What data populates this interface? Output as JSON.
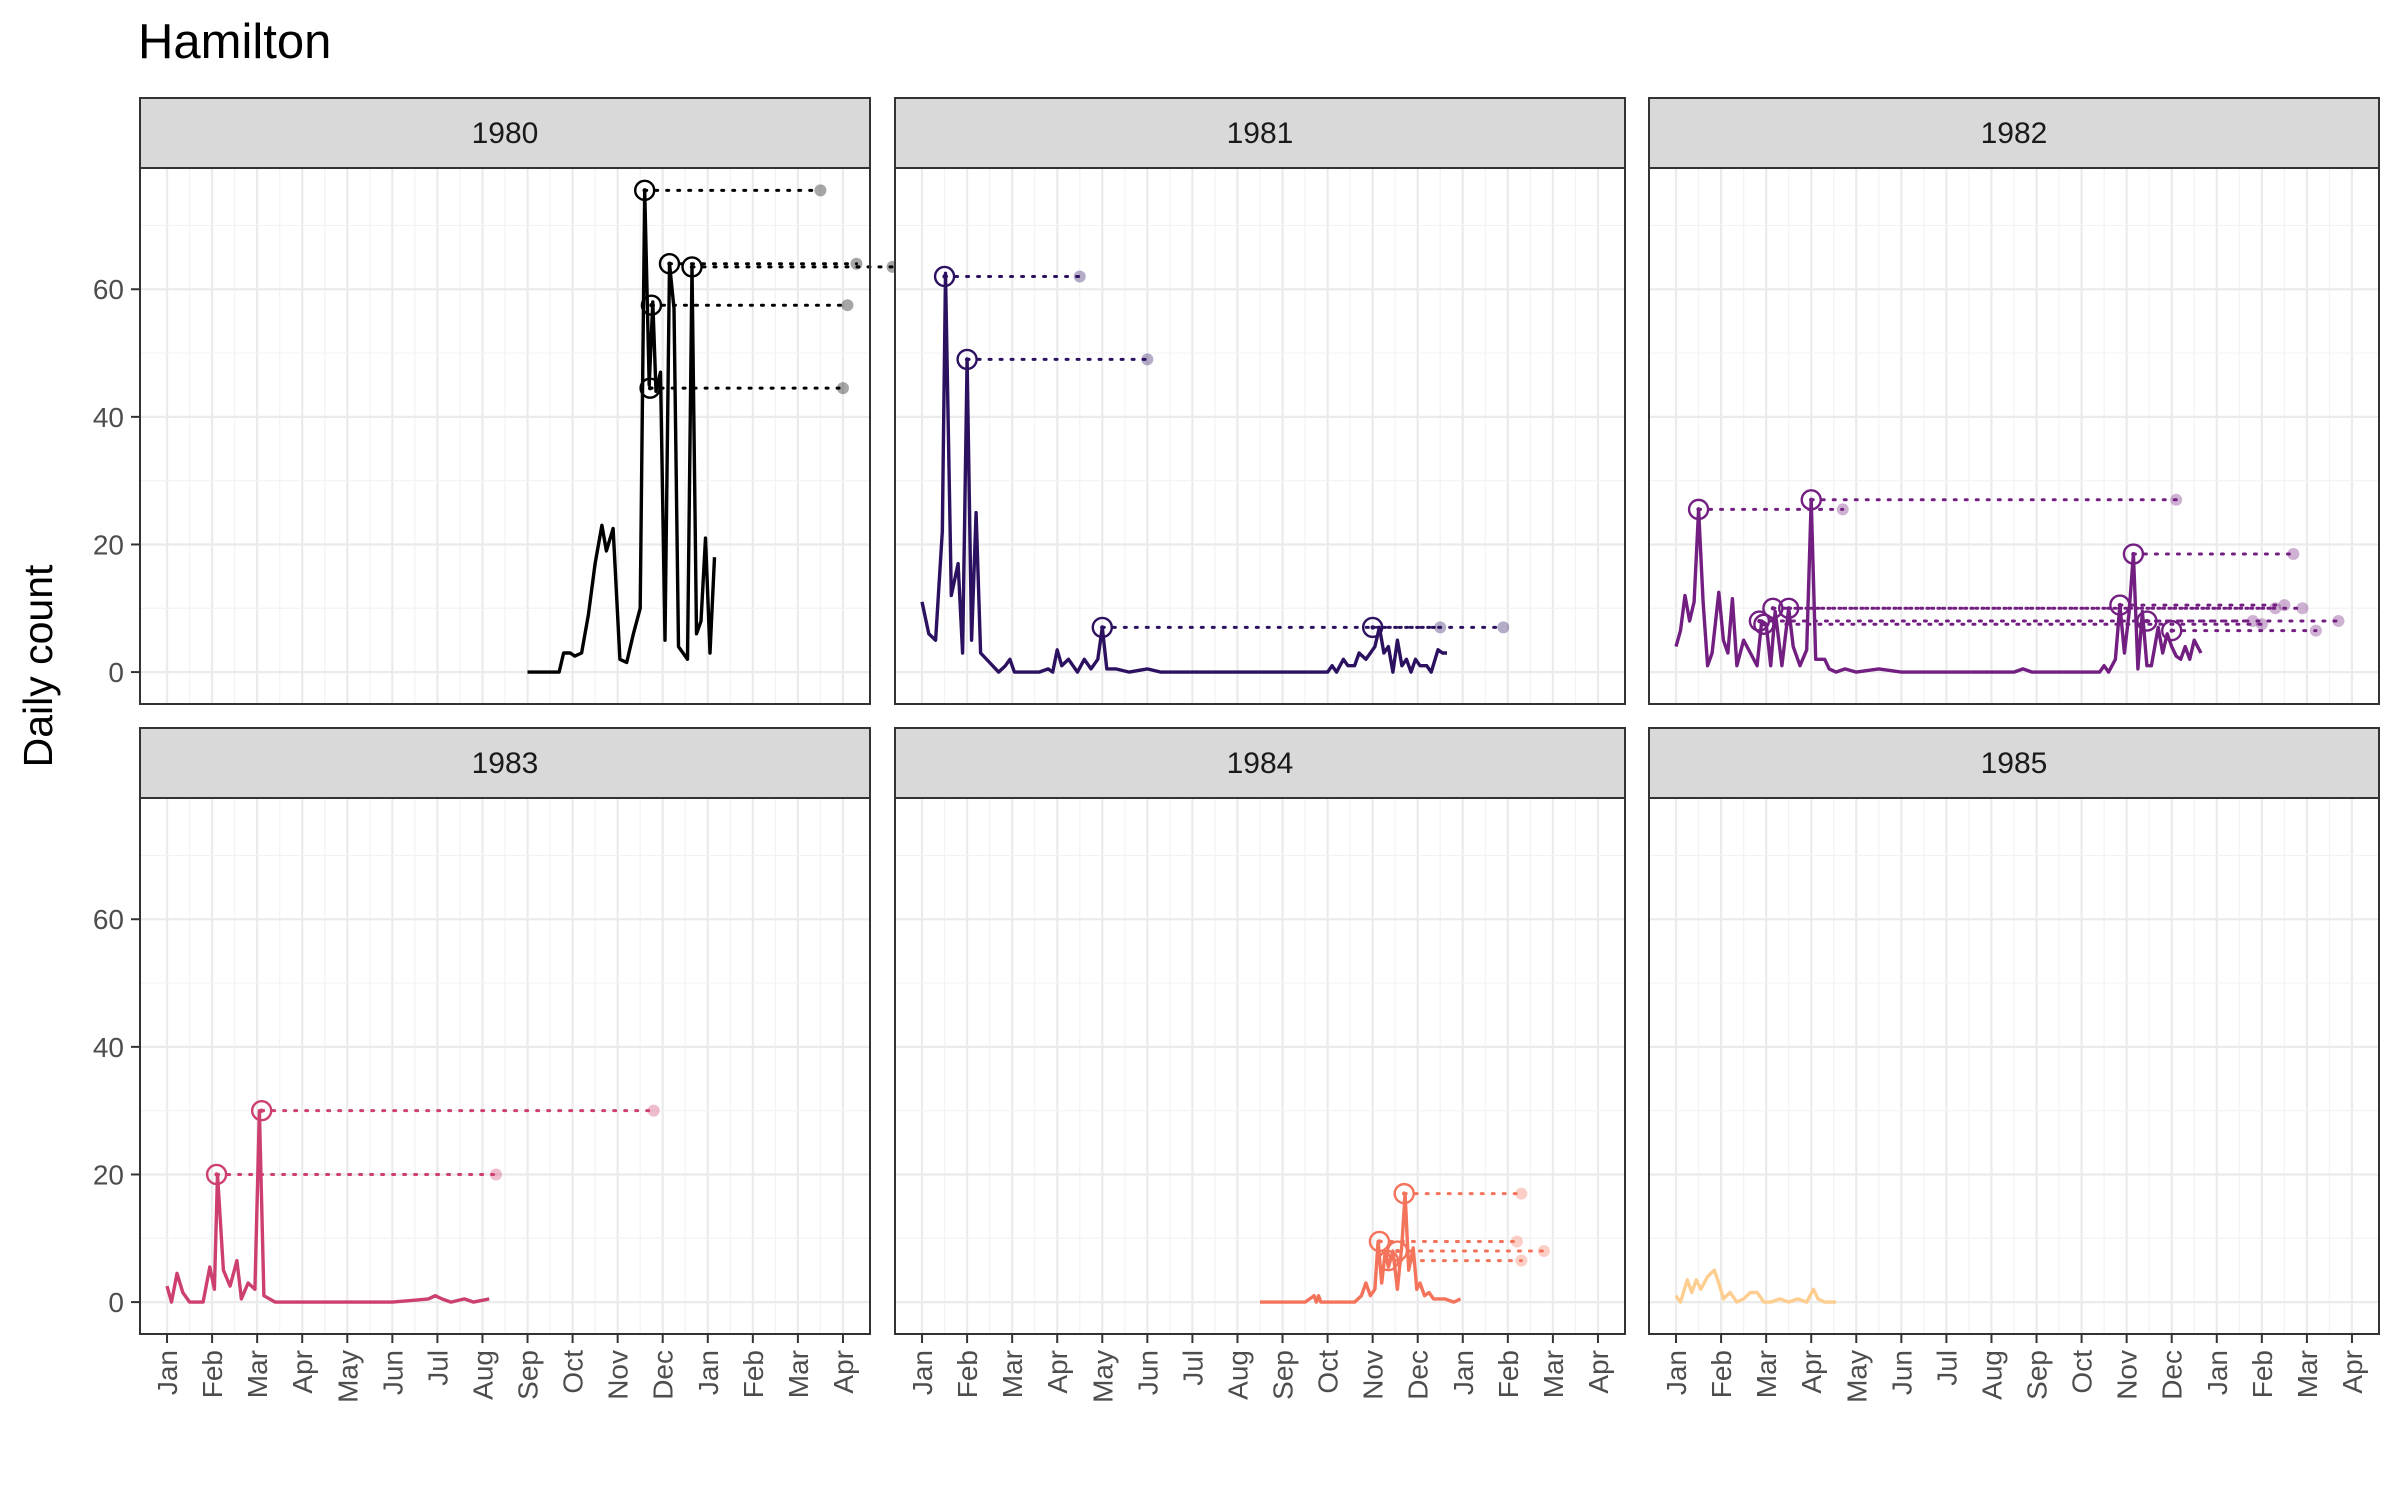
{
  "chart_data": {
    "type": "line",
    "title": "Hamilton",
    "ylabel": "Daily count",
    "xlabel": "",
    "ylim": [
      -5,
      79
    ],
    "yticks": [
      0,
      20,
      40,
      60
    ],
    "xlim_months": [
      -0.6,
      15.6
    ],
    "xtick_labels": [
      "Jan",
      "Feb",
      "Mar",
      "Apr",
      "May",
      "Jun",
      "Jul",
      "Aug",
      "Sep",
      "Oct",
      "Nov",
      "Dec",
      "Jan",
      "Feb",
      "Mar",
      "Apr"
    ],
    "grid": true,
    "facets": [
      {
        "label": "1980",
        "color": "#000000",
        "series": [
          [
            8.0,
            0
          ],
          [
            8.4,
            0
          ],
          [
            8.7,
            0
          ],
          [
            8.8,
            3
          ],
          [
            8.95,
            3
          ],
          [
            9.05,
            2.5
          ],
          [
            9.2,
            3
          ],
          [
            9.35,
            9
          ],
          [
            9.5,
            17
          ],
          [
            9.65,
            23
          ],
          [
            9.75,
            19
          ],
          [
            9.9,
            22.5
          ],
          [
            10.05,
            2
          ],
          [
            10.2,
            1.5
          ],
          [
            10.35,
            6
          ],
          [
            10.5,
            10
          ],
          [
            10.6,
            75.5
          ],
          [
            10.7,
            45
          ],
          [
            10.78,
            58
          ],
          [
            10.85,
            44
          ],
          [
            10.95,
            47
          ],
          [
            11.05,
            5
          ],
          [
            11.15,
            64
          ],
          [
            11.25,
            57
          ],
          [
            11.35,
            4
          ],
          [
            11.45,
            3
          ],
          [
            11.55,
            2
          ],
          [
            11.65,
            63.5
          ],
          [
            11.75,
            6
          ],
          [
            11.85,
            8
          ],
          [
            11.95,
            21
          ],
          [
            12.05,
            3
          ],
          [
            12.15,
            18
          ]
        ],
        "peaks": [
          [
            10.6,
            75.5,
            14.5
          ],
          [
            10.75,
            57.5,
            15.1
          ],
          [
            10.72,
            44.5,
            15.0
          ],
          [
            11.15,
            64,
            15.3
          ],
          [
            11.65,
            63.5,
            16.1
          ]
        ]
      },
      {
        "label": "1981",
        "color": "#2C1160",
        "series": [
          [
            0.0,
            11
          ],
          [
            0.15,
            6
          ],
          [
            0.3,
            5
          ],
          [
            0.45,
            22
          ],
          [
            0.52,
            62.5
          ],
          [
            0.65,
            12
          ],
          [
            0.8,
            17
          ],
          [
            0.9,
            3
          ],
          [
            1.0,
            49
          ],
          [
            1.1,
            5
          ],
          [
            1.2,
            25
          ],
          [
            1.3,
            3
          ],
          [
            1.5,
            1.5
          ],
          [
            1.7,
            0
          ],
          [
            1.85,
            1
          ],
          [
            1.95,
            2
          ],
          [
            2.05,
            0
          ],
          [
            2.3,
            0
          ],
          [
            2.6,
            0
          ],
          [
            2.8,
            0.5
          ],
          [
            2.9,
            0
          ],
          [
            3.0,
            3.5
          ],
          [
            3.1,
            1
          ],
          [
            3.25,
            2
          ],
          [
            3.45,
            0
          ],
          [
            3.6,
            2
          ],
          [
            3.75,
            0.5
          ],
          [
            3.9,
            2
          ],
          [
            4.0,
            7
          ],
          [
            4.1,
            0.5
          ],
          [
            4.3,
            0.5
          ],
          [
            4.6,
            0
          ],
          [
            5.0,
            0.5
          ],
          [
            5.3,
            0
          ],
          [
            6.0,
            0
          ],
          [
            7.0,
            0
          ],
          [
            8.0,
            0
          ],
          [
            8.5,
            0
          ],
          [
            9.0,
            0
          ],
          [
            9.1,
            1
          ],
          [
            9.2,
            0
          ],
          [
            9.35,
            2
          ],
          [
            9.45,
            1
          ],
          [
            9.6,
            1
          ],
          [
            9.7,
            3
          ],
          [
            9.85,
            2
          ],
          [
            9.95,
            3
          ],
          [
            10.05,
            4
          ],
          [
            10.15,
            7
          ],
          [
            10.25,
            3
          ],
          [
            10.35,
            4
          ],
          [
            10.45,
            0
          ],
          [
            10.55,
            5
          ],
          [
            10.65,
            1
          ],
          [
            10.75,
            2
          ],
          [
            10.85,
            0
          ],
          [
            10.95,
            2
          ],
          [
            11.05,
            1
          ],
          [
            11.2,
            1
          ],
          [
            11.3,
            0
          ],
          [
            11.45,
            3.5
          ],
          [
            11.55,
            3
          ],
          [
            11.65,
            3
          ]
        ],
        "peaks": [
          [
            0.5,
            62,
            3.5
          ],
          [
            1.0,
            49,
            5.0
          ],
          [
            4.0,
            7,
            11.5
          ],
          [
            10.0,
            7,
            12.9
          ]
        ]
      },
      {
        "label": "1982",
        "color": "#721F81",
        "series": [
          [
            0.0,
            4
          ],
          [
            0.1,
            6.5
          ],
          [
            0.2,
            12
          ],
          [
            0.3,
            8
          ],
          [
            0.4,
            11
          ],
          [
            0.5,
            25.5
          ],
          [
            0.6,
            11
          ],
          [
            0.7,
            1
          ],
          [
            0.8,
            3
          ],
          [
            0.95,
            12.5
          ],
          [
            1.05,
            5
          ],
          [
            1.15,
            3
          ],
          [
            1.25,
            11.5
          ],
          [
            1.35,
            1
          ],
          [
            1.5,
            5
          ],
          [
            1.65,
            3
          ],
          [
            1.8,
            1
          ],
          [
            1.9,
            8
          ],
          [
            2.0,
            7.5
          ],
          [
            2.1,
            1
          ],
          [
            2.2,
            9.5
          ],
          [
            2.35,
            1
          ],
          [
            2.5,
            10
          ],
          [
            2.6,
            4
          ],
          [
            2.75,
            1
          ],
          [
            2.9,
            3.5
          ],
          [
            3.0,
            27
          ],
          [
            3.1,
            2
          ],
          [
            3.3,
            2
          ],
          [
            3.4,
            0.5
          ],
          [
            3.55,
            0
          ],
          [
            3.75,
            0.5
          ],
          [
            4.0,
            0
          ],
          [
            4.5,
            0.5
          ],
          [
            5.0,
            0
          ],
          [
            6.0,
            0
          ],
          [
            7.0,
            0
          ],
          [
            7.5,
            0
          ],
          [
            7.7,
            0.5
          ],
          [
            7.9,
            0
          ],
          [
            8.5,
            0
          ],
          [
            9.0,
            0
          ],
          [
            9.4,
            0
          ],
          [
            9.5,
            1
          ],
          [
            9.6,
            0
          ],
          [
            9.75,
            2
          ],
          [
            9.85,
            10.5
          ],
          [
            9.95,
            3
          ],
          [
            10.05,
            9
          ],
          [
            10.15,
            18.5
          ],
          [
            10.25,
            0.5
          ],
          [
            10.35,
            9.5
          ],
          [
            10.45,
            1
          ],
          [
            10.55,
            1
          ],
          [
            10.7,
            7
          ],
          [
            10.8,
            3
          ],
          [
            10.9,
            6
          ],
          [
            11.0,
            4
          ],
          [
            11.1,
            2.5
          ],
          [
            11.2,
            2
          ],
          [
            11.3,
            4
          ],
          [
            11.4,
            2
          ],
          [
            11.5,
            5
          ],
          [
            11.65,
            3
          ]
        ],
        "peaks": [
          [
            0.5,
            25.5,
            3.7
          ],
          [
            1.85,
            8,
            12.8
          ],
          [
            1.95,
            7.5,
            13.0
          ],
          [
            2.15,
            10,
            13.3
          ],
          [
            2.5,
            10,
            13.9
          ],
          [
            3.0,
            27,
            11.1
          ],
          [
            9.85,
            10.5,
            13.5
          ],
          [
            10.15,
            18.5,
            13.7
          ],
          [
            10.45,
            8,
            14.7
          ],
          [
            11.0,
            6.5,
            14.2
          ]
        ]
      },
      {
        "label": "1983",
        "color": "#CD3F70",
        "series": [
          [
            0.0,
            2.5
          ],
          [
            0.1,
            0
          ],
          [
            0.22,
            4.5
          ],
          [
            0.35,
            1.5
          ],
          [
            0.5,
            0
          ],
          [
            0.8,
            0
          ],
          [
            0.95,
            5.5
          ],
          [
            1.05,
            2
          ],
          [
            1.12,
            20
          ],
          [
            1.25,
            5
          ],
          [
            1.4,
            2.5
          ],
          [
            1.55,
            6.5
          ],
          [
            1.65,
            0.5
          ],
          [
            1.8,
            3
          ],
          [
            1.95,
            2
          ],
          [
            2.05,
            30
          ],
          [
            2.15,
            1
          ],
          [
            2.4,
            0
          ],
          [
            3.0,
            0
          ],
          [
            4.0,
            0
          ],
          [
            5.0,
            0
          ],
          [
            5.5,
            0.3
          ],
          [
            5.8,
            0.5
          ],
          [
            5.95,
            1
          ],
          [
            6.1,
            0.5
          ],
          [
            6.3,
            0
          ],
          [
            6.6,
            0.5
          ],
          [
            6.8,
            0
          ],
          [
            7.15,
            0.5
          ]
        ],
        "peaks": [
          [
            1.1,
            20,
            7.3
          ],
          [
            2.1,
            30,
            10.8
          ]
        ]
      },
      {
        "label": "1984",
        "color": "#F4735B",
        "series": [
          [
            7.5,
            0
          ],
          [
            8.0,
            0
          ],
          [
            8.5,
            0
          ],
          [
            8.7,
            1
          ],
          [
            8.75,
            0
          ],
          [
            8.8,
            1
          ],
          [
            8.85,
            0
          ],
          [
            9.2,
            0
          ],
          [
            9.6,
            0
          ],
          [
            9.75,
            1
          ],
          [
            9.85,
            3
          ],
          [
            9.95,
            1
          ],
          [
            10.05,
            2
          ],
          [
            10.12,
            9.5
          ],
          [
            10.2,
            3
          ],
          [
            10.28,
            8
          ],
          [
            10.35,
            5.5
          ],
          [
            10.45,
            8
          ],
          [
            10.55,
            2
          ],
          [
            10.65,
            9
          ],
          [
            10.72,
            17
          ],
          [
            10.8,
            5
          ],
          [
            10.9,
            8.5
          ],
          [
            10.98,
            2
          ],
          [
            11.05,
            3
          ],
          [
            11.15,
            1
          ],
          [
            11.25,
            1.5
          ],
          [
            11.35,
            0.5
          ],
          [
            11.45,
            0.5
          ],
          [
            11.6,
            0.5
          ],
          [
            11.8,
            0
          ],
          [
            11.95,
            0.5
          ]
        ],
        "peaks": [
          [
            10.7,
            17,
            13.3
          ],
          [
            10.15,
            9.5,
            13.2
          ],
          [
            10.35,
            6.5,
            13.3
          ],
          [
            10.55,
            8,
            13.8
          ]
        ]
      },
      {
        "label": "1985",
        "color": "#FECE91",
        "series": [
          [
            0.0,
            1
          ],
          [
            0.1,
            0
          ],
          [
            0.25,
            3.5
          ],
          [
            0.35,
            1.5
          ],
          [
            0.45,
            3.5
          ],
          [
            0.55,
            2
          ],
          [
            0.7,
            4
          ],
          [
            0.85,
            5
          ],
          [
            0.95,
            3
          ],
          [
            1.05,
            0.5
          ],
          [
            1.2,
            1.5
          ],
          [
            1.35,
            0
          ],
          [
            1.5,
            0.5
          ],
          [
            1.65,
            1.5
          ],
          [
            1.8,
            1.5
          ],
          [
            1.95,
            0
          ],
          [
            2.1,
            0
          ],
          [
            2.3,
            0.5
          ],
          [
            2.5,
            0
          ],
          [
            2.7,
            0.5
          ],
          [
            2.9,
            0
          ],
          [
            3.05,
            2
          ],
          [
            3.15,
            0.5
          ],
          [
            3.3,
            0
          ],
          [
            3.55,
            0
          ]
        ],
        "peaks": []
      }
    ]
  }
}
